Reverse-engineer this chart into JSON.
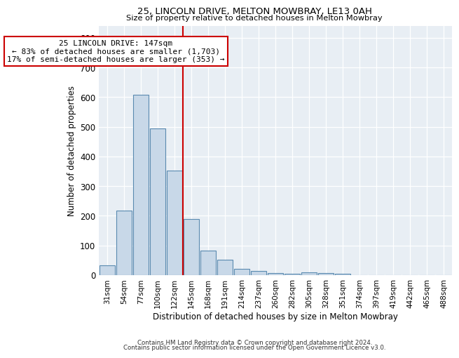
{
  "title1": "25, LINCOLN DRIVE, MELTON MOWBRAY, LE13 0AH",
  "title2": "Size of property relative to detached houses in Melton Mowbray",
  "xlabel": "Distribution of detached houses by size in Melton Mowbray",
  "ylabel": "Number of detached properties",
  "categories": [
    "31sqm",
    "54sqm",
    "77sqm",
    "100sqm",
    "122sqm",
    "145sqm",
    "168sqm",
    "191sqm",
    "214sqm",
    "237sqm",
    "260sqm",
    "282sqm",
    "305sqm",
    "328sqm",
    "351sqm",
    "374sqm",
    "397sqm",
    "419sqm",
    "442sqm",
    "465sqm",
    "488sqm"
  ],
  "values": [
    32,
    218,
    608,
    495,
    352,
    190,
    83,
    52,
    22,
    15,
    6,
    5,
    9,
    7,
    5,
    0,
    0,
    0,
    0,
    0,
    0
  ],
  "bar_color": "#c8d8e8",
  "bar_edge_color": "#5a8ab0",
  "vline_color": "#cc0000",
  "vline_index": 5,
  "annotation_text": "25 LINCOLN DRIVE: 147sqm\n← 83% of detached houses are smaller (1,703)\n17% of semi-detached houses are larger (353) →",
  "annotation_box_color": "#ffffff",
  "annotation_box_edge_color": "#cc0000",
  "footer1": "Contains HM Land Registry data © Crown copyright and database right 2024.",
  "footer2": "Contains public sector information licensed under the Open Government Licence v3.0.",
  "bg_color": "#ffffff",
  "plot_bg_color": "#e8eef4",
  "ylim": [
    0,
    840
  ],
  "yticks": [
    0,
    100,
    200,
    300,
    400,
    500,
    600,
    700,
    800
  ]
}
